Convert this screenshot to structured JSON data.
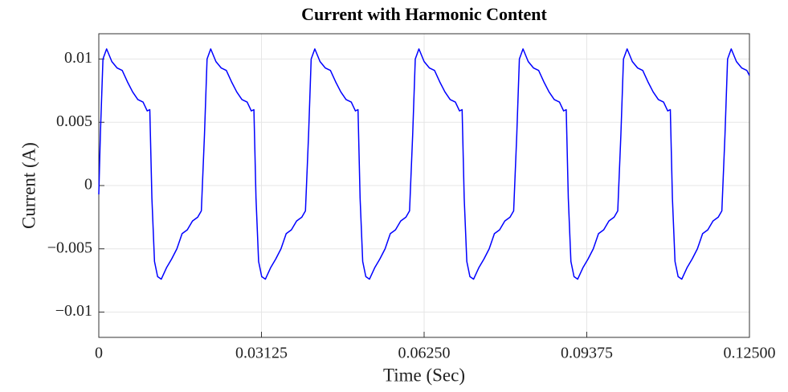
{
  "chart_data": {
    "type": "line",
    "title": "Current with Harmonic Content",
    "x_label": "Time (Sec)",
    "y_label": "Current (A)",
    "xlim": [
      0,
      0.125
    ],
    "ylim": [
      -0.012,
      0.012
    ],
    "xticks": [
      0,
      {
        "value": 0.03125,
        "label": "0.03125"
      },
      {
        "value": 0.0625,
        "label": "0.06250"
      },
      {
        "value": 0.09375,
        "label": "0.09375"
      },
      {
        "value": 0.125,
        "label": "0.12500"
      }
    ],
    "yticks": [
      {
        "value": -0.01,
        "label": "−0.01"
      },
      {
        "value": -0.005,
        "label": "−0.005"
      },
      0,
      0.005,
      0.01
    ],
    "grid": true,
    "series": [
      {
        "color": "#0000ff",
        "x": [
          0,
          0.0003,
          0.0008,
          0.0015,
          0.0025,
          0.0035,
          0.0045,
          0.0055,
          0.0065,
          0.0075,
          0.0085,
          0.0093,
          0.0098,
          0.0102,
          0.0107,
          0.0113,
          0.012,
          0.013,
          0.014,
          0.015,
          0.016,
          0.017,
          0.018,
          0.019,
          0.0197,
          0.0203,
          0.0208,
          0.0215,
          0.0225,
          0.0235,
          0.0245,
          0.0255,
          0.0265,
          0.0275,
          0.0285,
          0.0293,
          0.0298,
          0.0302,
          0.0307,
          0.0313,
          0.032,
          0.033,
          0.034,
          0.035,
          0.036,
          0.037,
          0.038,
          0.039,
          0.0397,
          0.0403,
          0.0408,
          0.0415,
          0.0425,
          0.0435,
          0.0445,
          0.0455,
          0.0465,
          0.0475,
          0.0485,
          0.0493,
          0.0498,
          0.0502,
          0.0507,
          0.0513,
          0.052,
          0.053,
          0.054,
          0.055,
          0.056,
          0.057,
          0.058,
          0.059,
          0.0597,
          0.0603,
          0.0608,
          0.0615,
          0.0625,
          0.0635,
          0.0645,
          0.0655,
          0.0665,
          0.0675,
          0.0685,
          0.0693,
          0.0698,
          0.0702,
          0.0707,
          0.0713,
          0.072,
          0.073,
          0.074,
          0.075,
          0.076,
          0.077,
          0.078,
          0.079,
          0.0797,
          0.0803,
          0.0808,
          0.0815,
          0.0825,
          0.0835,
          0.0845,
          0.0855,
          0.0865,
          0.0875,
          0.0885,
          0.0893,
          0.0898,
          0.0902,
          0.0907,
          0.0913,
          0.092,
          0.093,
          0.094,
          0.095,
          0.096,
          0.097,
          0.098,
          0.099,
          0.0997,
          0.1003,
          0.1008,
          0.1015,
          0.1025,
          0.1035,
          0.1045,
          0.1055,
          0.1065,
          0.1075,
          0.1085,
          0.1093,
          0.1098,
          0.1102,
          0.1107,
          0.1113,
          0.112,
          0.113,
          0.114,
          0.115,
          0.116,
          0.117,
          0.118,
          0.119,
          0.1197,
          0.1203,
          0.1208,
          0.1215,
          0.1225,
          0.1235,
          0.1245,
          0.125
        ],
        "values": [
          -0.0007,
          0.004,
          0.01,
          0.0108,
          0.0098,
          0.0093,
          0.0091,
          0.0082,
          0.0074,
          0.0068,
          0.0066,
          0.0059,
          0.006,
          -0.001,
          -0.006,
          -0.0072,
          -0.0074,
          -0.0065,
          -0.0058,
          -0.005,
          -0.0038,
          -0.0035,
          -0.0028,
          -0.0025,
          -0.002,
          0.004,
          0.01,
          0.0108,
          0.0098,
          0.0093,
          0.0091,
          0.0082,
          0.0074,
          0.0068,
          0.0066,
          0.0059,
          0.006,
          -0.001,
          -0.006,
          -0.0072,
          -0.0074,
          -0.0065,
          -0.0058,
          -0.005,
          -0.0038,
          -0.0035,
          -0.0028,
          -0.0025,
          -0.002,
          0.004,
          0.01,
          0.0108,
          0.0098,
          0.0093,
          0.0091,
          0.0082,
          0.0074,
          0.0068,
          0.0066,
          0.0059,
          0.006,
          -0.001,
          -0.006,
          -0.0072,
          -0.0074,
          -0.0065,
          -0.0058,
          -0.005,
          -0.0038,
          -0.0035,
          -0.0028,
          -0.0025,
          -0.002,
          0.004,
          0.01,
          0.0108,
          0.0098,
          0.0093,
          0.0091,
          0.0082,
          0.0074,
          0.0068,
          0.0066,
          0.0059,
          0.006,
          -0.001,
          -0.006,
          -0.0072,
          -0.0074,
          -0.0065,
          -0.0058,
          -0.005,
          -0.0038,
          -0.0035,
          -0.0028,
          -0.0025,
          -0.002,
          0.004,
          0.01,
          0.0108,
          0.0098,
          0.0093,
          0.0091,
          0.0082,
          0.0074,
          0.0068,
          0.0066,
          0.0059,
          0.006,
          -0.001,
          -0.006,
          -0.0072,
          -0.0074,
          -0.0065,
          -0.0058,
          -0.005,
          -0.0038,
          -0.0035,
          -0.0028,
          -0.0025,
          -0.002,
          0.004,
          0.01,
          0.0108,
          0.0098,
          0.0093,
          0.0091,
          0.0082,
          0.0074,
          0.0068,
          0.0066,
          0.0059,
          0.006,
          -0.001,
          -0.006,
          -0.0072,
          -0.0074,
          -0.0065,
          -0.0058,
          -0.005,
          -0.0038,
          -0.0035,
          -0.0028,
          -0.0025,
          -0.002,
          0.004,
          0.01,
          0.0108,
          0.0098,
          0.0093,
          0.0091,
          0.0087
        ]
      }
    ]
  }
}
